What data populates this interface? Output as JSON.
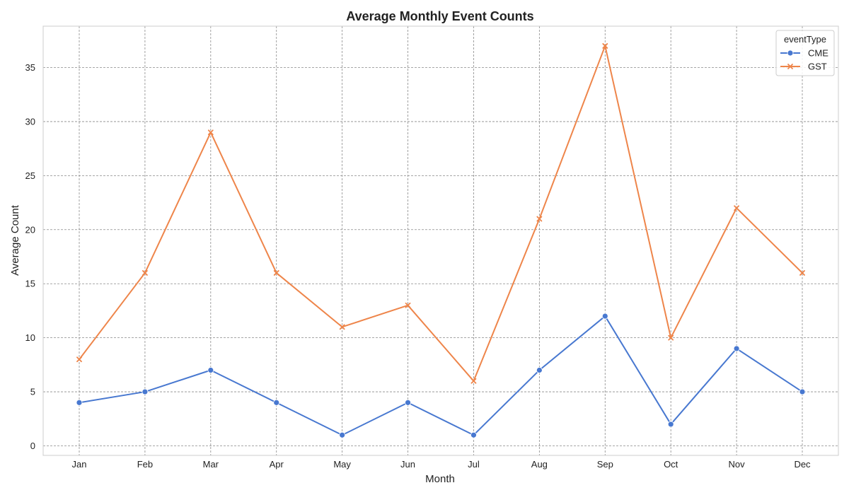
{
  "chart_data": {
    "type": "line",
    "title": "Average Monthly Event Counts",
    "xlabel": "Month",
    "ylabel": "Average Count",
    "categories": [
      "Jan",
      "Feb",
      "Mar",
      "Apr",
      "May",
      "Jun",
      "Jul",
      "Aug",
      "Sep",
      "Oct",
      "Nov",
      "Dec"
    ],
    "yticks": [
      0,
      5,
      10,
      15,
      20,
      25,
      30,
      35
    ],
    "ylim": [
      -0.6,
      38.6
    ],
    "grid": true,
    "legend": {
      "title": "eventType",
      "placement": "top-right"
    },
    "series": [
      {
        "name": "CME",
        "color": "#4878d0",
        "marker": "circle",
        "values": [
          4,
          5,
          7,
          4,
          1,
          4,
          1,
          7,
          12,
          2,
          9,
          5
        ]
      },
      {
        "name": "GST",
        "color": "#ee854a",
        "marker": "x",
        "values": [
          8,
          16,
          29,
          16,
          11,
          13,
          6,
          21,
          37,
          10,
          22,
          16
        ]
      }
    ]
  }
}
